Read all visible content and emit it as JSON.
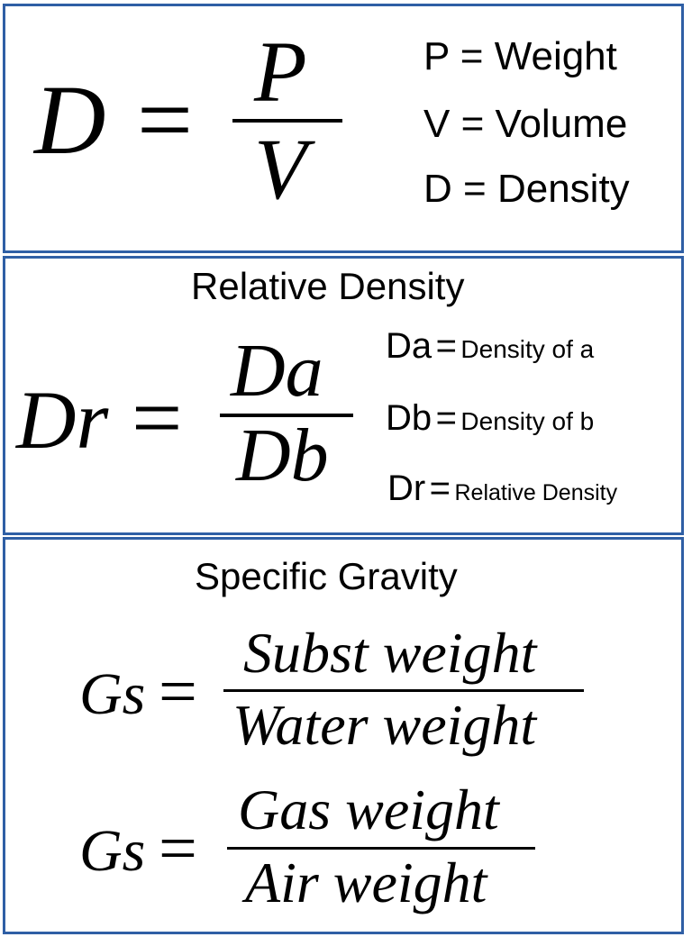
{
  "density": {
    "lhs": "D",
    "eq": "=",
    "numerator": "P",
    "denominator": "V",
    "legend": [
      {
        "symbol": "P",
        "eq": "=",
        "meaning": "Weight"
      },
      {
        "symbol": "V",
        "eq": "=",
        "meaning": "Volume"
      },
      {
        "symbol": "D",
        "eq": "=",
        "meaning": "Density"
      }
    ]
  },
  "relative_density": {
    "title": "Relative Density",
    "lhs": "Dr",
    "eq": "=",
    "numerator": "Da",
    "denominator": "Db",
    "legend": [
      {
        "symbol": "Da",
        "eq": "=",
        "meaning": "Density of a"
      },
      {
        "symbol": "Db",
        "eq": "=",
        "meaning": "Density of b"
      },
      {
        "symbol": "Dr",
        "eq": "=",
        "meaning": "Relative Density"
      }
    ]
  },
  "specific_gravity": {
    "title": "Specific Gravity",
    "formulas": [
      {
        "lhs": "Gs",
        "eq": "=",
        "numerator": "Subst weight",
        "denominator": "Water weight"
      },
      {
        "lhs": "Gs",
        "eq": "=",
        "numerator": "Gas weight",
        "denominator": "Air weight"
      }
    ]
  },
  "colors": {
    "border": "#2f5fa5"
  }
}
